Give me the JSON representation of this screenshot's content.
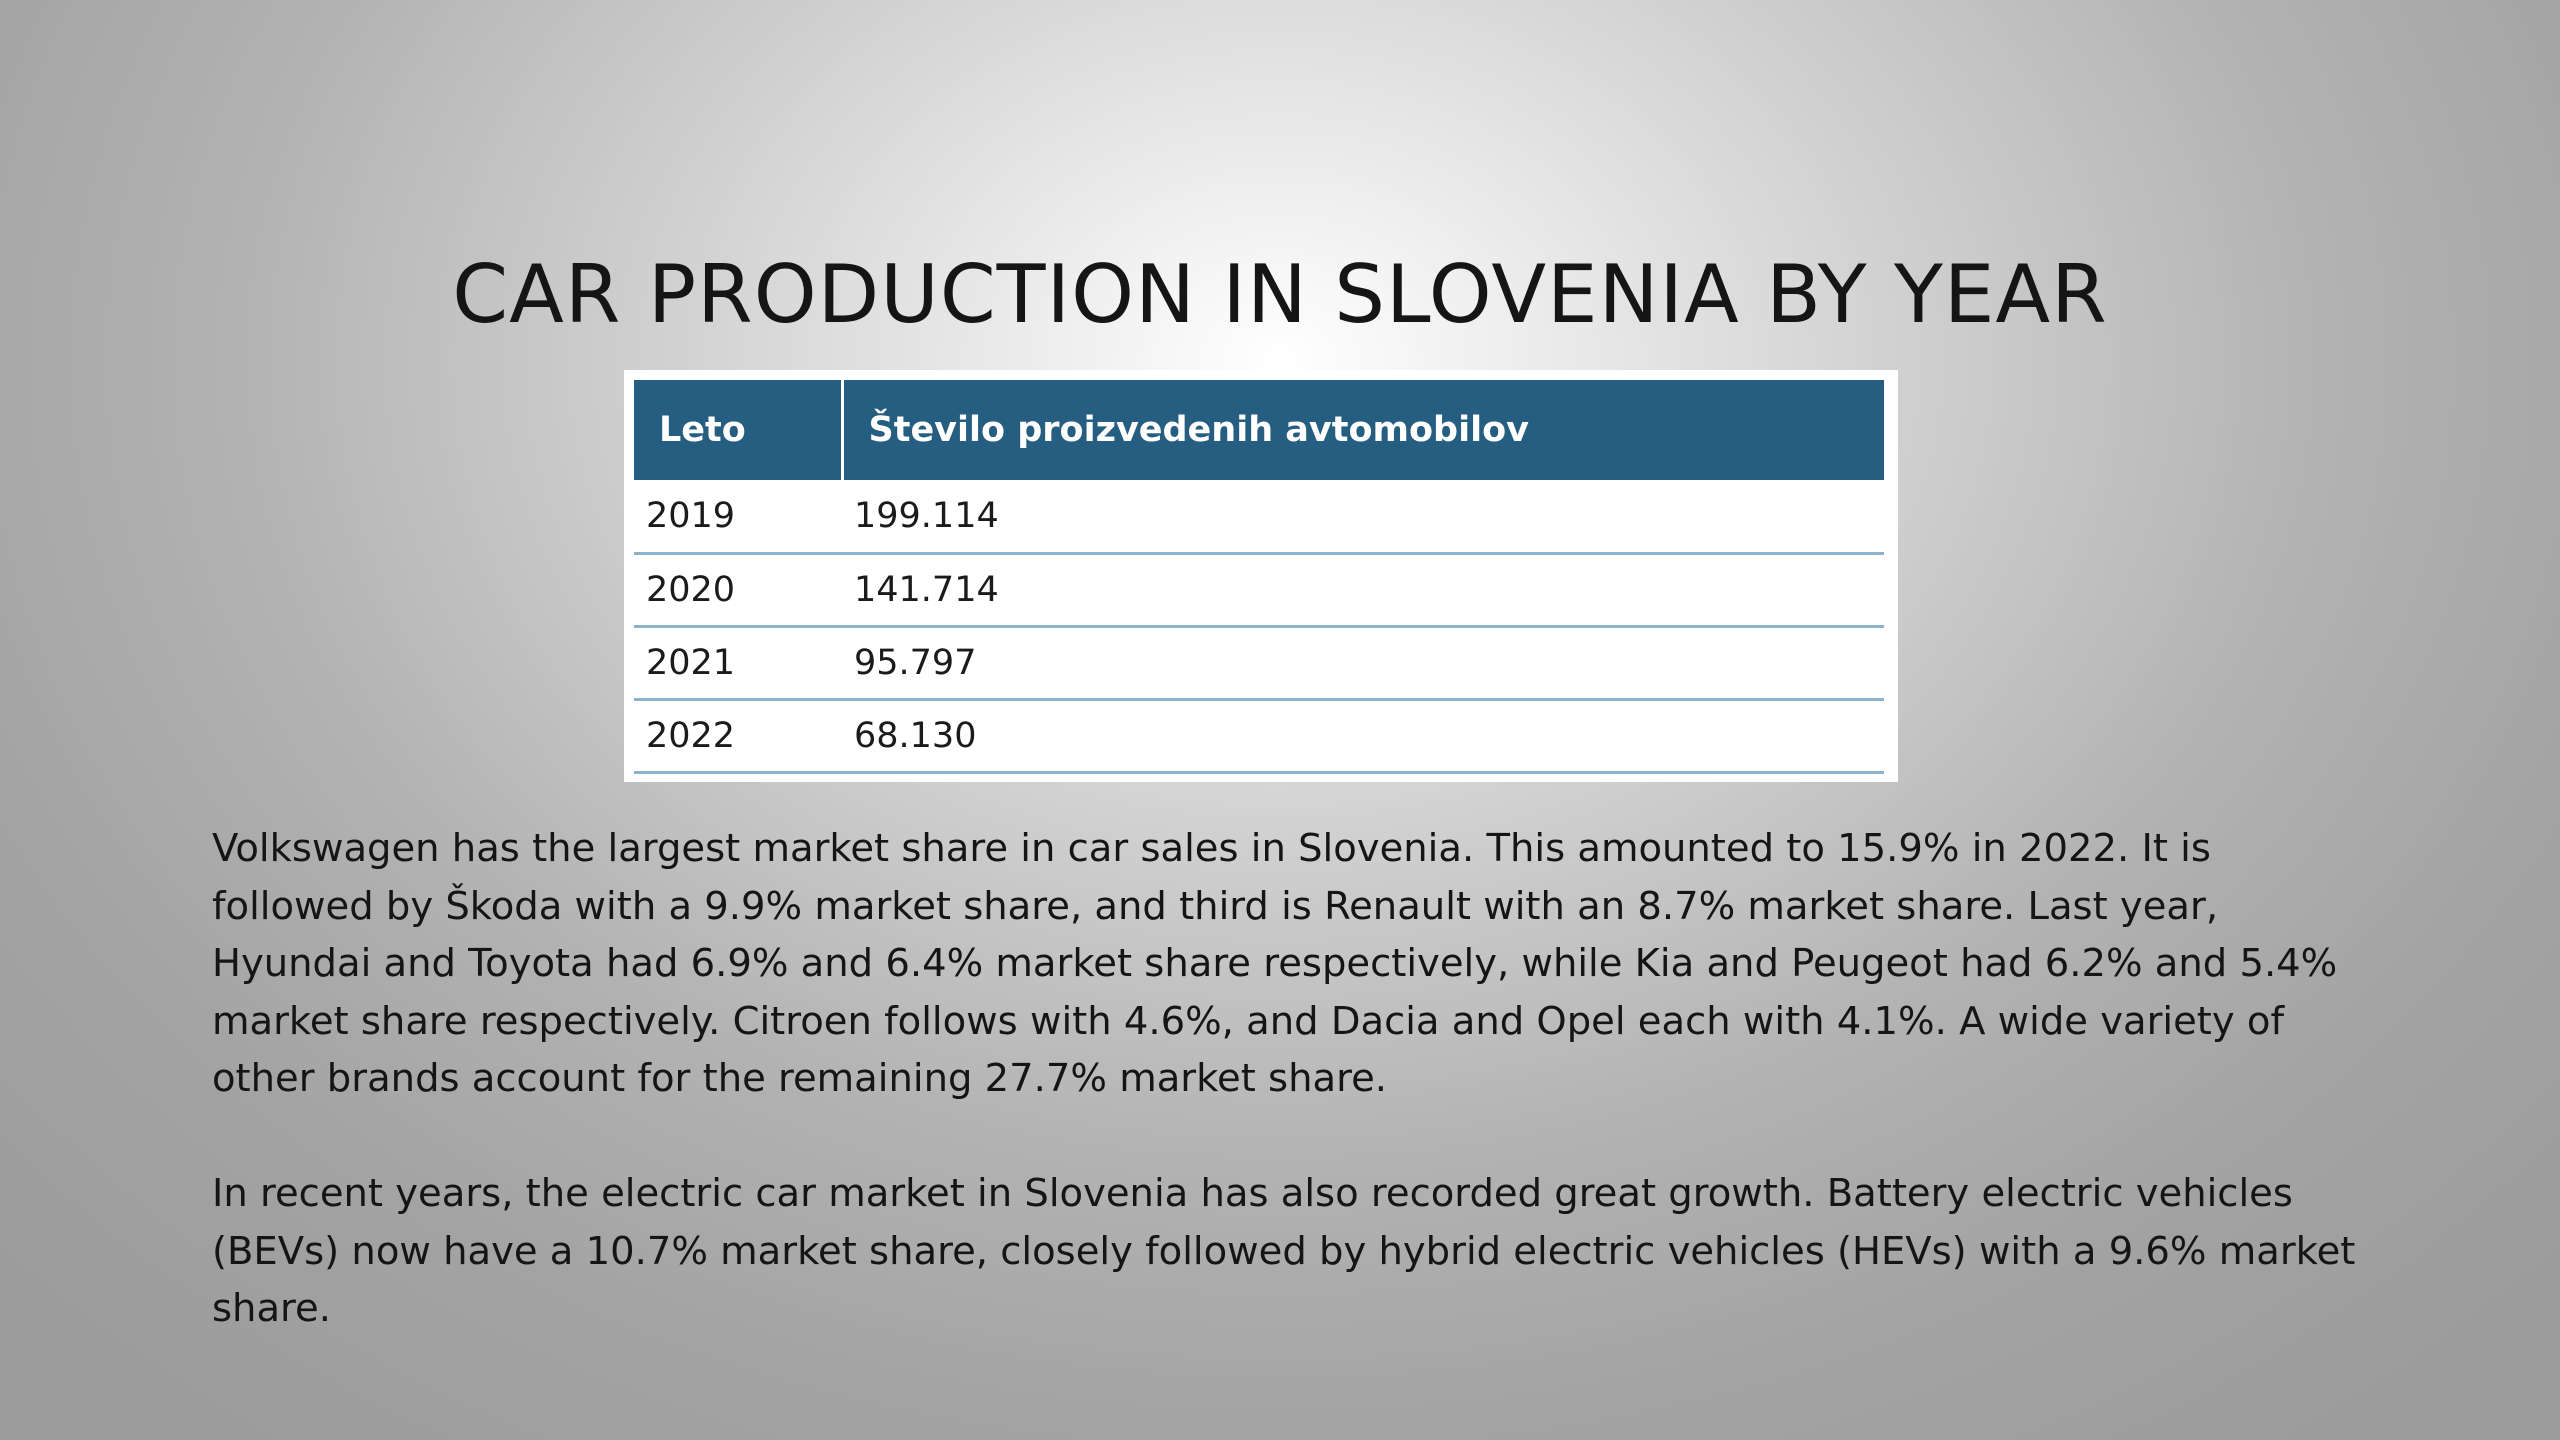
{
  "slide": {
    "title": "CAR PRODUCTION IN SLOVENIA BY YEAR"
  },
  "table": {
    "headers": [
      "Leto",
      "Število proizvedenih avtomobilov"
    ],
    "rows": [
      [
        "2019",
        "199.114"
      ],
      [
        "2020",
        "141.714"
      ],
      [
        "2021",
        "95.797"
      ],
      [
        "2022",
        "68.130"
      ]
    ],
    "header_color": "#255e80",
    "divider_color": "#8db2cc"
  },
  "body": {
    "paragraphs": [
      "Volkswagen has the largest market share in car sales in Slovenia. This amounted to 15.9% in 2022. It is followed by Škoda with a 9.9% market share, and third is Renault with an 8.7% market share. Last year, Hyundai and Toyota had 6.9% and 6.4% market share respectively, while Kia and Peugeot had 6.2% and 5.4% market share respectively. Citroen follows with 4.6%, and Dacia and Opel each with 4.1%. A wide variety of other brands account for the remaining 27.7% market share.",
      "In recent years, the electric car market in Slovenia has also recorded great growth. Battery electric vehicles (BEVs) now have a 10.7% market share, closely followed by hybrid electric vehicles (HEVs) with a 9.6% market share."
    ]
  }
}
